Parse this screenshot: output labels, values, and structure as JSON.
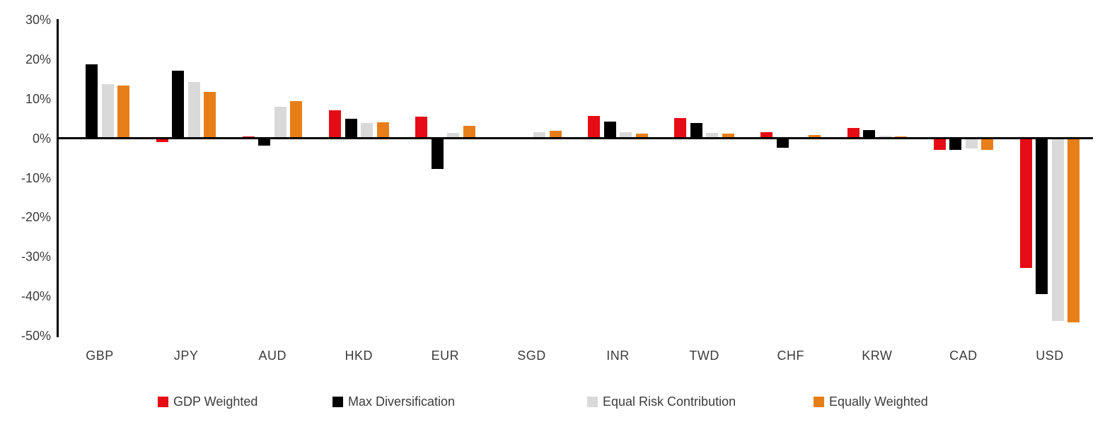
{
  "chart_data": {
    "type": "bar",
    "title": "",
    "xlabel": "",
    "ylabel": "",
    "categories": [
      "GBP",
      "JPY",
      "AUD",
      "HKD",
      "EUR",
      "SGD",
      "INR",
      "TWD",
      "CHF",
      "KRW",
      "CAD",
      "USD"
    ],
    "series": [
      {
        "name": "GDP Weighted",
        "color": "#e60c15",
        "values": [
          0.3,
          -1.0,
          0.4,
          7.1,
          5.4,
          0.0,
          5.7,
          5.1,
          1.5,
          2.6,
          -3.0,
          -32.9
        ]
      },
      {
        "name": "Max Diversification",
        "color": "#000000",
        "values": [
          18.8,
          17.1,
          -1.8,
          4.9,
          -7.8,
          -0.3,
          4.3,
          3.8,
          -2.4,
          2.0,
          -3.0,
          -39.5
        ]
      },
      {
        "name": "Equal Risk Contribution",
        "color": "#d9d9d9",
        "values": [
          13.8,
          14.2,
          8.0,
          3.9,
          1.3,
          1.6,
          1.6,
          1.4,
          0.2,
          0.6,
          -2.6,
          -46.3
        ]
      },
      {
        "name": "Equally Weighted",
        "color": "#e87e18",
        "values": [
          13.4,
          11.8,
          9.4,
          4.0,
          3.1,
          1.9,
          1.2,
          1.1,
          0.9,
          0.4,
          -3.0,
          -46.6
        ]
      }
    ],
    "ylim": [
      -50,
      30
    ],
    "yticks": [
      30,
      20,
      10,
      0,
      -10,
      -20,
      -30,
      -40,
      -50
    ],
    "ytick_suffix": "%",
    "grid": false,
    "legend_position": "bottom",
    "legend": [
      "GDP Weighted",
      "Max Diversification",
      "Equal Risk Contribution",
      "Equally Weighted"
    ]
  },
  "colors": {
    "axis": "#000000",
    "label_text": "#3c3c3c",
    "background": "#ffffff"
  }
}
